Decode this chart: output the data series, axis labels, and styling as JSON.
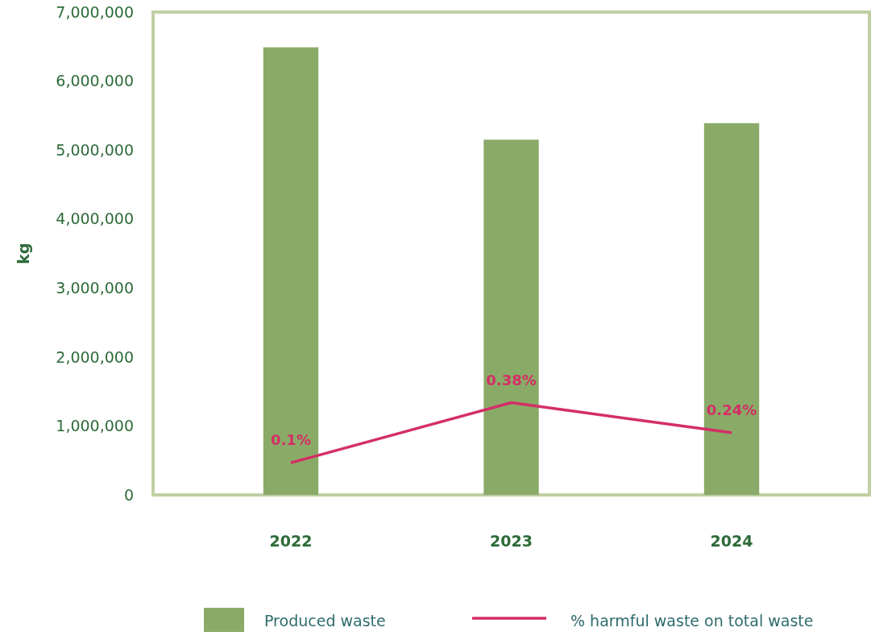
{
  "chart_data": {
    "type": "bar",
    "ylabel": "kg",
    "categories": [
      "2022",
      "2023",
      "2024"
    ],
    "ylim": [
      0,
      7000000
    ],
    "yticks": [
      {
        "value": 0,
        "label": "0"
      },
      {
        "value": 1000000,
        "label": "1,000,000"
      },
      {
        "value": 2000000,
        "label": "2,000,000"
      },
      {
        "value": 3000000,
        "label": "3,000,000"
      },
      {
        "value": 4000000,
        "label": "4,000,000"
      },
      {
        "value": 5000000,
        "label": "5,000,000"
      },
      {
        "value": 6000000,
        "label": "6,000,000"
      },
      {
        "value": 7000000,
        "label": "7,000,000"
      }
    ],
    "y2lim": [
      -0.05,
      2.2
    ],
    "series": [
      {
        "name": "Produced waste",
        "color": "#8aab68",
        "values": [
          6490000,
          5150000,
          5390000
        ]
      },
      {
        "name": "% harmful waste on total waste",
        "type": "line",
        "axis": "y2",
        "color": "#d42e66",
        "values": [
          0.1,
          0.38,
          0.24
        ],
        "value_labels": [
          "0.1%",
          "0.38%",
          "0.24%"
        ]
      }
    ],
    "grid": false,
    "legend": "bottom"
  }
}
